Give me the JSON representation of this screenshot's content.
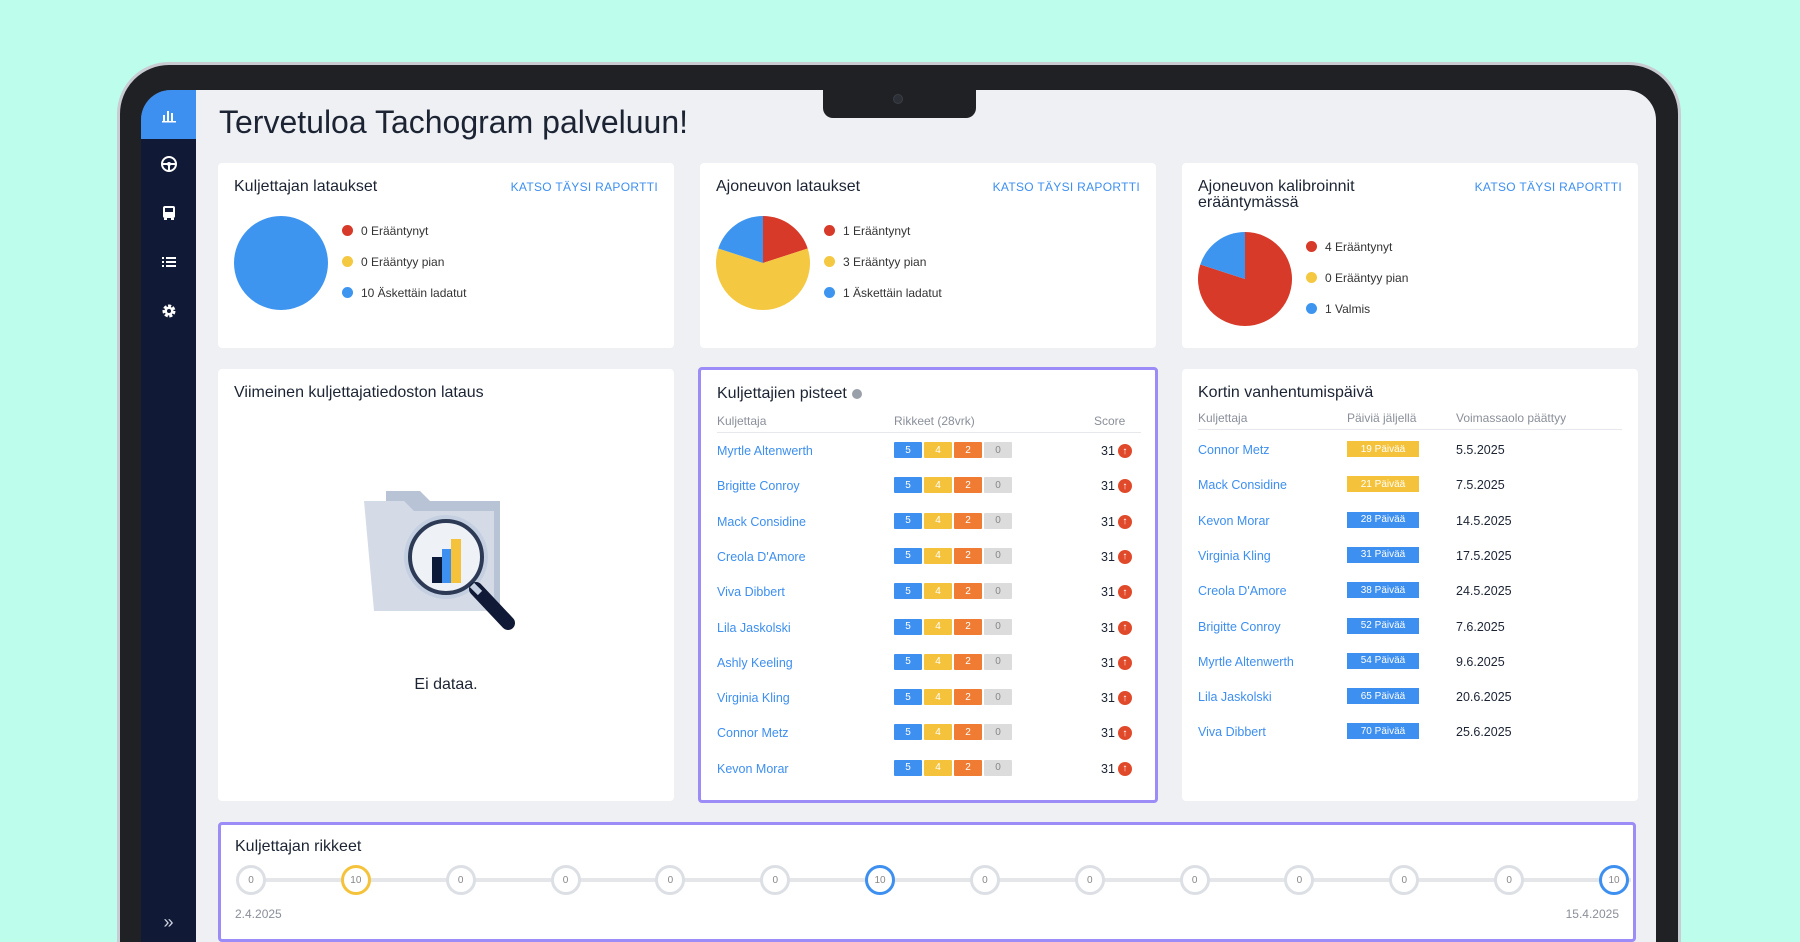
{
  "page": {
    "title": "Tervetuloa Tachogram palveluun!"
  },
  "sidebar": {
    "items": [
      {
        "icon": "bar-chart-icon",
        "active": true
      },
      {
        "icon": "steering-wheel-icon",
        "active": false
      },
      {
        "icon": "bus-icon",
        "active": false
      },
      {
        "icon": "list-icon",
        "active": false
      },
      {
        "icon": "gear-icon",
        "active": false
      }
    ],
    "collapse_label": "»"
  },
  "cards": {
    "driver_downloads": {
      "title": "Kuljettajan lataukset",
      "link": "KATSO TÄYSI RAPORTTI",
      "legend": [
        "0 Erääntynyt",
        "0 Erääntyy pian",
        "10 Äskettäin ladatut"
      ],
      "values": [
        0,
        0,
        10
      ]
    },
    "vehicle_downloads": {
      "title": "Ajoneuvon lataukset",
      "link": "KATSO TÄYSI RAPORTTI",
      "legend": [
        "1 Erääntynyt",
        "3 Erääntyy pian",
        "1 Äskettäin ladatut"
      ],
      "values": [
        1,
        3,
        1
      ]
    },
    "calibrations": {
      "title": "Ajoneuvon kalibroinnit erääntymässä",
      "link": "KATSO TÄYSI RAPORTTI",
      "legend": [
        "4 Erääntynyt",
        "0 Erääntyy pian",
        "1 Valmis"
      ],
      "values": [
        4,
        0,
        1
      ]
    },
    "last_download": {
      "title": "Viimeinen kuljettajatiedoston lataus",
      "empty": "Ei dataa."
    },
    "driver_scores": {
      "title": "Kuljettajien pisteet",
      "headers": [
        "Kuljettaja",
        "Rikkeet (28vrk)",
        "Score"
      ],
      "rows": [
        {
          "name": "Myrtle Altenwerth",
          "badges": [
            "5",
            "4",
            "2",
            "0"
          ],
          "score": "31"
        },
        {
          "name": "Brigitte Conroy",
          "badges": [
            "5",
            "4",
            "2",
            "0"
          ],
          "score": "31"
        },
        {
          "name": "Mack Considine",
          "badges": [
            "5",
            "4",
            "2",
            "0"
          ],
          "score": "31"
        },
        {
          "name": "Creola D'Amore",
          "badges": [
            "5",
            "4",
            "2",
            "0"
          ],
          "score": "31"
        },
        {
          "name": "Viva Dibbert",
          "badges": [
            "5",
            "4",
            "2",
            "0"
          ],
          "score": "31"
        },
        {
          "name": "Lila Jaskolski",
          "badges": [
            "5",
            "4",
            "2",
            "0"
          ],
          "score": "31"
        },
        {
          "name": "Ashly Keeling",
          "badges": [
            "5",
            "4",
            "2",
            "0"
          ],
          "score": "31"
        },
        {
          "name": "Virginia Kling",
          "badges": [
            "5",
            "4",
            "2",
            "0"
          ],
          "score": "31"
        },
        {
          "name": "Connor Metz",
          "badges": [
            "5",
            "4",
            "2",
            "0"
          ],
          "score": "31"
        },
        {
          "name": "Kevon Morar",
          "badges": [
            "5",
            "4",
            "2",
            "0"
          ],
          "score": "31"
        }
      ]
    },
    "card_expiry": {
      "title": "Kortin vanhentumispäivä",
      "headers": [
        "Kuljettaja",
        "Päiviä jäljellä",
        "Voimassaolo päättyy"
      ],
      "rows": [
        {
          "name": "Connor Metz",
          "days": "19 Päivää",
          "date": "5.5.2025",
          "status": "warning"
        },
        {
          "name": "Mack Considine",
          "days": "21 Päivää",
          "date": "7.5.2025",
          "status": "warning"
        },
        {
          "name": "Kevon Morar",
          "days": "28 Päivää",
          "date": "14.5.2025",
          "status": "ok"
        },
        {
          "name": "Virginia Kling",
          "days": "31 Päivää",
          "date": "17.5.2025",
          "status": "ok"
        },
        {
          "name": "Creola D'Amore",
          "days": "38 Päivää",
          "date": "24.5.2025",
          "status": "ok"
        },
        {
          "name": "Brigitte Conroy",
          "days": "52 Päivää",
          "date": "7.6.2025",
          "status": "ok"
        },
        {
          "name": "Myrtle Altenwerth",
          "days": "54 Päivää",
          "date": "9.6.2025",
          "status": "ok"
        },
        {
          "name": "Lila Jaskolski",
          "days": "65 Päivää",
          "date": "20.6.2025",
          "status": "ok"
        },
        {
          "name": "Viva Dibbert",
          "days": "70 Päivää",
          "date": "25.6.2025",
          "status": "ok"
        }
      ]
    },
    "violations": {
      "title": "Kuljettajan rikkeet",
      "nodes": [
        {
          "value": "0",
          "state": "none"
        },
        {
          "value": "10",
          "state": "yellow"
        },
        {
          "value": "0",
          "state": "none"
        },
        {
          "value": "0",
          "state": "none"
        },
        {
          "value": "0",
          "state": "none"
        },
        {
          "value": "0",
          "state": "none"
        },
        {
          "value": "10",
          "state": "blue"
        },
        {
          "value": "0",
          "state": "none"
        },
        {
          "value": "0",
          "state": "none"
        },
        {
          "value": "0",
          "state": "none"
        },
        {
          "value": "0",
          "state": "none"
        },
        {
          "value": "0",
          "state": "none"
        },
        {
          "value": "0",
          "state": "none"
        },
        {
          "value": "10",
          "state": "blue"
        }
      ],
      "start_date": "2.4.2025",
      "end_date": "15.4.2025"
    }
  },
  "colors": {
    "red": "#d83a2a",
    "yellow": "#f5c842",
    "blue": "#3d95f0",
    "badge_warning": "#f5c33b",
    "badge_ok": "#3d8ff0"
  }
}
